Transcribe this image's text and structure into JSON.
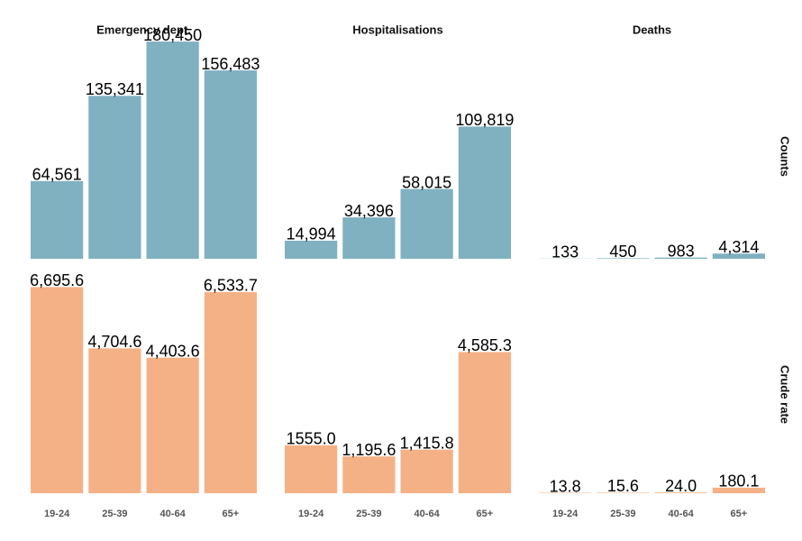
{
  "chart_data": [
    {
      "type": "bar",
      "title": "Emergency dept.",
      "values": [
        64561,
        135341,
        180450,
        156483
      ],
      "value_labels": [
        "64,561",
        "135,341",
        "180,450",
        "156,483"
      ],
      "color": "#80b1c1",
      "ylim": [
        0,
        185000
      ]
    },
    {
      "type": "bar",
      "title": "Hospitalisations",
      "values": [
        14994,
        34396,
        58015,
        109819
      ],
      "value_labels": [
        "14,994",
        "34,396",
        "58,015",
        "109,819"
      ],
      "color": "#80b1c1",
      "ylim": [
        0,
        185000
      ]
    },
    {
      "type": "bar",
      "title": "Deaths",
      "row_label": "Counts",
      "values": [
        133,
        450,
        983,
        4314
      ],
      "value_labels": [
        "133",
        "450",
        "983",
        "4,314"
      ],
      "color": "#80b1c1",
      "ylim": [
        0,
        185000
      ]
    },
    {
      "type": "bar",
      "categories": [
        "19-24",
        "25-39",
        "40-64",
        "65+"
      ],
      "values": [
        6695.6,
        4704.6,
        4403.6,
        6533.7
      ],
      "value_labels": [
        "6,695.6",
        "4,704.6",
        "4,403.6",
        "6,533.7"
      ],
      "color": "#f5b186",
      "ylim": [
        0,
        7000
      ]
    },
    {
      "type": "bar",
      "categories": [
        "19-24",
        "25-39",
        "40-64",
        "65+"
      ],
      "values": [
        1555.0,
        1195.6,
        1415.8,
        4585.3
      ],
      "value_labels": [
        "1555.0",
        "1,195.6",
        "1,415.8",
        "4,585.3"
      ],
      "color": "#f5b186",
      "ylim": [
        0,
        7000
      ]
    },
    {
      "type": "bar",
      "row_label": "Crude rate",
      "categories": [
        "19-24",
        "25-39",
        "40-64",
        "65+"
      ],
      "values": [
        13.8,
        15.6,
        24.0,
        180.1
      ],
      "value_labels": [
        "13.8",
        "15.6",
        "24.0",
        "180.1"
      ],
      "color": "#f5b186",
      "ylim": [
        0,
        7000
      ]
    }
  ]
}
